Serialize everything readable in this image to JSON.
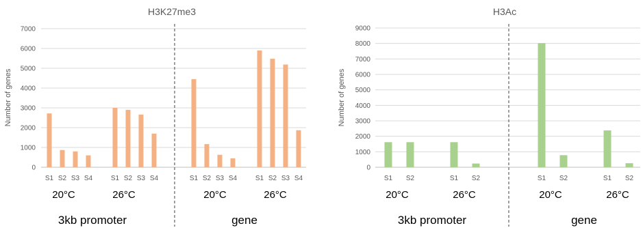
{
  "chart_data": [
    {
      "type": "bar",
      "title": "H3K27me3",
      "ylabel": "Number of genes",
      "ylim": [
        0,
        7000
      ],
      "yticks": [
        "0",
        "1000",
        "2000",
        "3000",
        "4000",
        "5000",
        "6000",
        "7000"
      ],
      "color": "#f4b183",
      "categories": [
        "S1",
        "S2",
        "S3",
        "S4",
        "S1",
        "S2",
        "S3",
        "S4",
        "S1",
        "S2",
        "S3",
        "S4",
        "S1",
        "S2",
        "S3",
        "S4"
      ],
      "values": [
        2720,
        870,
        800,
        600,
        3000,
        2900,
        2660,
        1700,
        4450,
        1170,
        630,
        450,
        5900,
        5480,
        5190,
        1870
      ],
      "temperature_labels": [
        "20°C",
        "26°C",
        "20°C",
        "26°C"
      ],
      "region_labels": [
        "3kb promoter",
        "gene"
      ]
    },
    {
      "type": "bar",
      "title": "H3Ac",
      "ylabel": "Number of genes",
      "ylim": [
        0,
        9000
      ],
      "yticks": [
        "0",
        "1000",
        "2000",
        "3000",
        "4000",
        "5000",
        "6000",
        "7000",
        "8000",
        "9000"
      ],
      "color": "#a9d18e",
      "categories": [
        "S1",
        "S2",
        "S1",
        "S2",
        "S1",
        "S2",
        "S1",
        "S2"
      ],
      "values": [
        1620,
        1620,
        1620,
        240,
        8020,
        780,
        2380,
        260
      ],
      "temperature_labels": [
        "20°C",
        "26°C",
        "20°C",
        "26°C"
      ],
      "region_labels": [
        "3kb promoter",
        "gene"
      ]
    }
  ]
}
